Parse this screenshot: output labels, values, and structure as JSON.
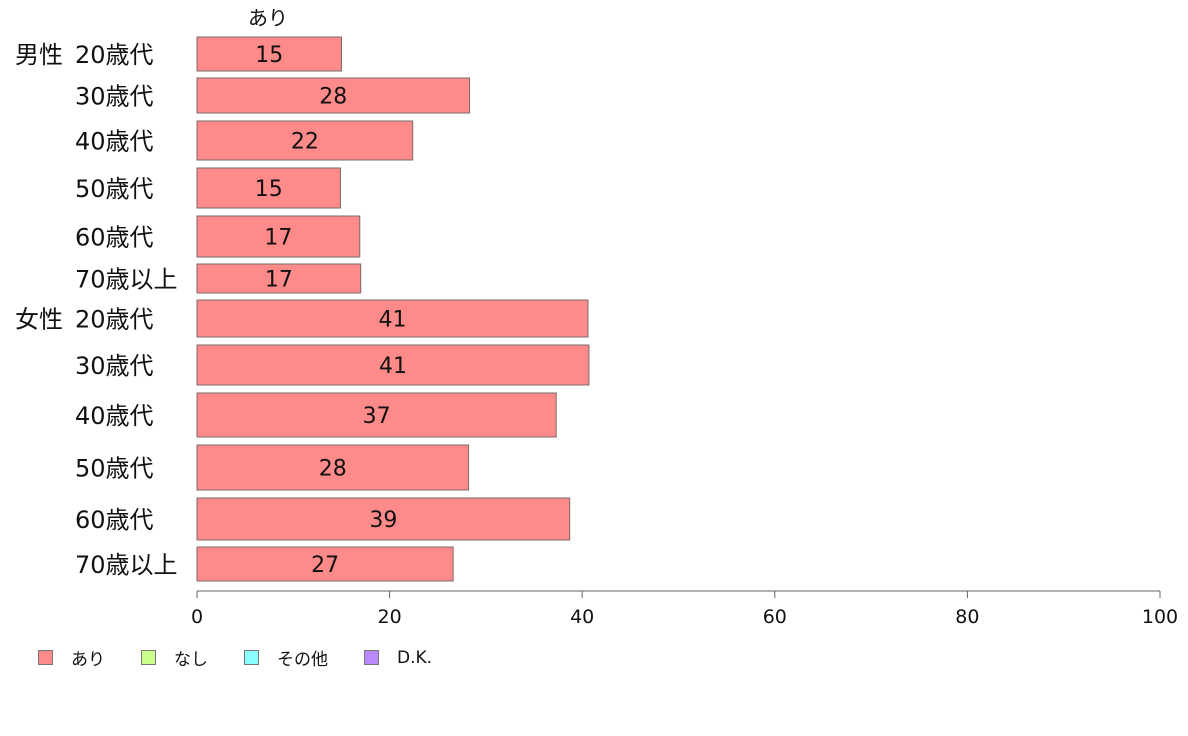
{
  "chart_data": {
    "type": "bar",
    "orientation": "horizontal",
    "series": [
      {
        "name": "あり",
        "color": "#ff8a8a"
      },
      {
        "name": "なし",
        "color": "#c9ff8a"
      },
      {
        "name": "その他",
        "color": "#8affff"
      },
      {
        "name": "D.K.",
        "color": "#b98aff"
      }
    ],
    "top_series_label": "あり",
    "rows": [
      {
        "group": "男性",
        "label": "20歳代",
        "values": [
          15.0
        ]
      },
      {
        "group": "",
        "label": "30歳代",
        "values": [
          28.3
        ]
      },
      {
        "group": "",
        "label": "40歳代",
        "values": [
          22.4
        ]
      },
      {
        "group": "",
        "label": "50歳代",
        "values": [
          14.9
        ]
      },
      {
        "group": "",
        "label": "60歳代",
        "values": [
          16.9
        ]
      },
      {
        "group": "",
        "label": "70歳以上",
        "values": [
          17.0
        ]
      },
      {
        "group": "女性",
        "label": "20歳代",
        "values": [
          40.6
        ]
      },
      {
        "group": "",
        "label": "30歳代",
        "values": [
          40.7
        ]
      },
      {
        "group": "",
        "label": "40歳代",
        "values": [
          37.3
        ]
      },
      {
        "group": "",
        "label": "50歳代",
        "values": [
          28.2
        ]
      },
      {
        "group": "",
        "label": "60歳代",
        "values": [
          38.7
        ]
      },
      {
        "group": "",
        "label": "70歳以上",
        "values": [
          26.6
        ]
      }
    ],
    "data_labels": [
      "15",
      "28",
      "22",
      "15",
      "17",
      "17",
      "41",
      "41",
      "37",
      "28",
      "39",
      "27"
    ],
    "xlim": [
      0,
      100
    ],
    "xticks": [
      "0",
      "20",
      "40",
      "60",
      "80",
      "100"
    ],
    "grid": false,
    "legend_position": "bottom-left"
  }
}
